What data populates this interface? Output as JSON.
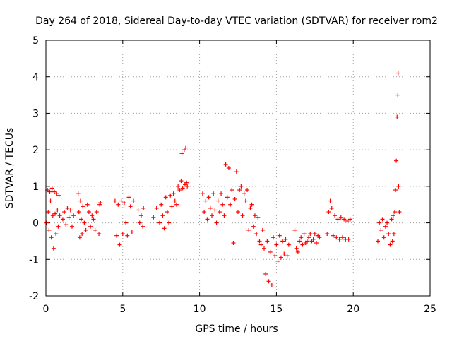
{
  "chart_data": {
    "type": "scatter",
    "title": "Day 264 of 2018, Sidereal Day-to-day VTEC variation (SDTVAR) for receiver rom2",
    "xlabel": "GPS time / hours",
    "ylabel": "SDTVAR / TECUs",
    "xlim": [
      0,
      25
    ],
    "ylim": [
      -2,
      5
    ],
    "xticks": [
      "0",
      "5",
      "10",
      "15",
      "20",
      "25"
    ],
    "yticks": [
      "-2",
      "-1",
      "0",
      "1",
      "2",
      "3",
      "4",
      "5"
    ],
    "grid": true,
    "marker": "+",
    "color": "#ff0000",
    "series": [
      {
        "name": "rom2",
        "points": [
          [
            0.05,
            0.0
          ],
          [
            0.1,
            0.9
          ],
          [
            0.15,
            0.3
          ],
          [
            0.2,
            -0.2
          ],
          [
            0.25,
            0.85
          ],
          [
            0.3,
            0.6
          ],
          [
            0.35,
            -0.4
          ],
          [
            0.4,
            0.95
          ],
          [
            0.45,
            0.2
          ],
          [
            0.5,
            -0.7
          ],
          [
            0.55,
            0.85
          ],
          [
            0.6,
            0.25
          ],
          [
            0.65,
            -0.3
          ],
          [
            0.7,
            0.8
          ],
          [
            0.75,
            0.35
          ],
          [
            0.8,
            -0.1
          ],
          [
            0.85,
            0.75
          ],
          [
            0.9,
            0.2
          ],
          [
            1.1,
            0.1
          ],
          [
            1.2,
            0.3
          ],
          [
            1.3,
            -0.05
          ],
          [
            1.4,
            0.4
          ],
          [
            1.5,
            0.15
          ],
          [
            1.6,
            0.35
          ],
          [
            1.7,
            -0.1
          ],
          [
            1.8,
            0.2
          ],
          [
            2.1,
            0.8
          ],
          [
            2.15,
            0.3
          ],
          [
            2.2,
            -0.4
          ],
          [
            2.25,
            0.6
          ],
          [
            2.3,
            0.1
          ],
          [
            2.35,
            -0.3
          ],
          [
            2.4,
            0.45
          ],
          [
            2.5,
            0.0
          ],
          [
            2.6,
            -0.2
          ],
          [
            2.7,
            0.5
          ],
          [
            2.8,
            0.3
          ],
          [
            2.9,
            -0.1
          ],
          [
            3.0,
            0.2
          ],
          [
            3.1,
            0.1
          ],
          [
            3.2,
            -0.2
          ],
          [
            3.3,
            0.3
          ],
          [
            3.45,
            -0.3
          ],
          [
            3.5,
            0.5
          ],
          [
            3.55,
            0.55
          ],
          [
            4.5,
            0.6
          ],
          [
            4.6,
            -0.35
          ],
          [
            4.7,
            0.5
          ],
          [
            4.8,
            -0.6
          ],
          [
            4.9,
            0.6
          ],
          [
            5.0,
            -0.3
          ],
          [
            5.1,
            0.55
          ],
          [
            5.2,
            0.0
          ],
          [
            5.3,
            -0.35
          ],
          [
            5.4,
            0.7
          ],
          [
            5.5,
            0.45
          ],
          [
            5.6,
            -0.25
          ],
          [
            5.7,
            0.6
          ],
          [
            6.0,
            0.35
          ],
          [
            6.1,
            0.0
          ],
          [
            6.2,
            0.2
          ],
          [
            6.3,
            -0.1
          ],
          [
            6.35,
            0.4
          ],
          [
            7.0,
            0.15
          ],
          [
            7.2,
            0.4
          ],
          [
            7.4,
            0.0
          ],
          [
            7.5,
            0.5
          ],
          [
            7.6,
            0.2
          ],
          [
            7.7,
            -0.15
          ],
          [
            7.8,
            0.7
          ],
          [
            7.9,
            0.3
          ],
          [
            8.0,
            0.0
          ],
          [
            8.1,
            0.75
          ],
          [
            8.2,
            0.45
          ],
          [
            8.3,
            0.8
          ],
          [
            8.4,
            0.6
          ],
          [
            8.5,
            0.5
          ],
          [
            8.6,
            1.0
          ],
          [
            8.7,
            0.9
          ],
          [
            8.8,
            1.15
          ],
          [
            8.85,
            1.9
          ],
          [
            8.9,
            0.95
          ],
          [
            9.0,
            2.0
          ],
          [
            9.05,
            1.05
          ],
          [
            9.1,
            2.05
          ],
          [
            9.15,
            1.1
          ],
          [
            9.2,
            1.0
          ],
          [
            10.2,
            0.8
          ],
          [
            10.3,
            0.3
          ],
          [
            10.4,
            0.6
          ],
          [
            10.5,
            0.1
          ],
          [
            10.6,
            0.7
          ],
          [
            10.7,
            0.4
          ],
          [
            10.8,
            0.2
          ],
          [
            10.9,
            0.8
          ],
          [
            11.0,
            0.35
          ],
          [
            11.1,
            0.0
          ],
          [
            11.2,
            0.6
          ],
          [
            11.3,
            0.3
          ],
          [
            11.4,
            0.8
          ],
          [
            11.5,
            0.5
          ],
          [
            11.6,
            0.2
          ],
          [
            11.7,
            1.6
          ],
          [
            11.8,
            0.7
          ],
          [
            11.9,
            1.5
          ],
          [
            12.0,
            0.5
          ],
          [
            12.1,
            0.9
          ],
          [
            12.2,
            -0.55
          ],
          [
            12.3,
            0.65
          ],
          [
            12.4,
            1.4
          ],
          [
            12.5,
            0.3
          ],
          [
            12.6,
            0.9
          ],
          [
            12.7,
            1.0
          ],
          [
            12.8,
            0.2
          ],
          [
            12.9,
            0.8
          ],
          [
            13.0,
            0.6
          ],
          [
            13.1,
            0.9
          ],
          [
            13.2,
            -0.2
          ],
          [
            13.3,
            0.4
          ],
          [
            13.4,
            0.5
          ],
          [
            13.5,
            -0.1
          ],
          [
            13.6,
            0.2
          ],
          [
            13.7,
            -0.3
          ],
          [
            13.8,
            0.15
          ],
          [
            13.9,
            -0.5
          ],
          [
            14.0,
            -0.6
          ],
          [
            14.1,
            -0.2
          ],
          [
            14.2,
            -0.7
          ],
          [
            14.3,
            -1.4
          ],
          [
            14.4,
            -0.5
          ],
          [
            14.5,
            -1.6
          ],
          [
            14.6,
            -0.8
          ],
          [
            14.7,
            -1.7
          ],
          [
            14.8,
            -0.4
          ],
          [
            14.9,
            -0.9
          ],
          [
            15.0,
            -0.6
          ],
          [
            15.1,
            -1.05
          ],
          [
            15.2,
            -0.35
          ],
          [
            15.3,
            -0.95
          ],
          [
            15.4,
            -0.5
          ],
          [
            15.5,
            -0.85
          ],
          [
            15.6,
            -0.45
          ],
          [
            15.7,
            -0.9
          ],
          [
            15.8,
            -0.6
          ],
          [
            16.2,
            -0.2
          ],
          [
            16.3,
            -0.7
          ],
          [
            16.4,
            -0.8
          ],
          [
            16.5,
            -0.5
          ],
          [
            16.6,
            -0.4
          ],
          [
            16.7,
            -0.6
          ],
          [
            16.8,
            -0.3
          ],
          [
            16.9,
            -0.55
          ],
          [
            17.0,
            -0.5
          ],
          [
            17.1,
            -0.4
          ],
          [
            17.2,
            -0.3
          ],
          [
            17.3,
            -0.5
          ],
          [
            17.4,
            -0.45
          ],
          [
            17.5,
            -0.3
          ],
          [
            17.6,
            -0.55
          ],
          [
            17.7,
            -0.35
          ],
          [
            17.8,
            -0.4
          ],
          [
            18.3,
            -0.3
          ],
          [
            18.4,
            0.3
          ],
          [
            18.5,
            0.6
          ],
          [
            18.6,
            0.4
          ],
          [
            18.7,
            -0.35
          ],
          [
            18.8,
            0.2
          ],
          [
            18.9,
            -0.4
          ],
          [
            19.0,
            0.1
          ],
          [
            19.1,
            -0.45
          ],
          [
            19.2,
            0.15
          ],
          [
            19.3,
            -0.4
          ],
          [
            19.4,
            0.1
          ],
          [
            19.5,
            -0.45
          ],
          [
            19.6,
            0.05
          ],
          [
            19.7,
            -0.45
          ],
          [
            19.8,
            0.1
          ],
          [
            21.6,
            -0.5
          ],
          [
            21.7,
            0.0
          ],
          [
            21.8,
            -0.2
          ],
          [
            21.9,
            0.1
          ],
          [
            22.0,
            -0.4
          ],
          [
            22.1,
            -0.1
          ],
          [
            22.2,
            0.0
          ],
          [
            22.3,
            -0.3
          ],
          [
            22.4,
            -0.6
          ],
          [
            22.5,
            0.1
          ],
          [
            22.55,
            -0.5
          ],
          [
            22.6,
            0.2
          ],
          [
            22.65,
            -0.3
          ],
          [
            22.7,
            0.3
          ],
          [
            22.75,
            0.9
          ],
          [
            22.8,
            1.7
          ],
          [
            22.85,
            2.9
          ],
          [
            22.9,
            3.5
          ],
          [
            22.92,
            4.1
          ],
          [
            22.95,
            1.0
          ],
          [
            23.0,
            0.3
          ]
        ]
      }
    ]
  }
}
